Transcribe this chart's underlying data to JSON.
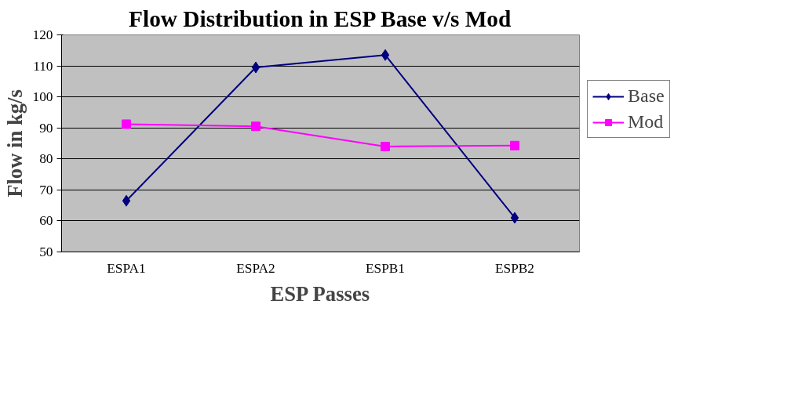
{
  "chart_data": {
    "type": "line",
    "title": "Flow Distribution in ESP Base v/s Mod",
    "xlabel": "ESP Passes",
    "ylabel": "Flow in kg/s",
    "categories": [
      "ESPA1",
      "ESPA2",
      "ESPB1",
      "ESPB2"
    ],
    "series": [
      {
        "name": "Base",
        "color": "#000080",
        "marker": "diamond",
        "values": [
          66.5,
          109.5,
          113.5,
          61
        ]
      },
      {
        "name": "Mod",
        "color": "#ff00ff",
        "marker": "square",
        "values": [
          91.2,
          90.5,
          84,
          84.3
        ]
      }
    ],
    "ylim": [
      50,
      120
    ],
    "yticks": [
      50,
      60,
      70,
      80,
      90,
      100,
      110,
      120
    ],
    "grid": "y",
    "legend": "right",
    "line_style": "solid"
  }
}
